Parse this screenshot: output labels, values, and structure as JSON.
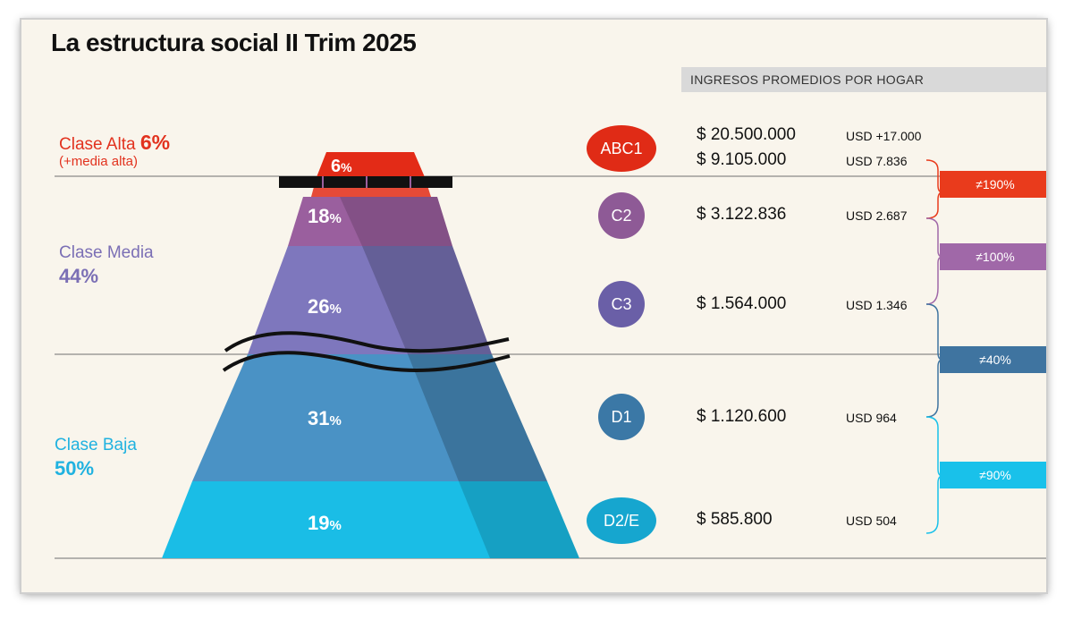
{
  "title": "La estructura social II Trim 2025",
  "income_header": "INGRESOS PROMEDIOS POR HOGAR",
  "classes": {
    "alta": {
      "label": "Clase Alta",
      "pct": "6%",
      "sub": "(+media alta)",
      "color": "#e2321e"
    },
    "media": {
      "label": "Clase Media",
      "pct": "44%",
      "color": "#7b6fb5"
    },
    "baja": {
      "label": "Clase Baja",
      "pct": "50%",
      "color": "#20b2e0"
    }
  },
  "pyramid": [
    {
      "pct": "6",
      "color": "#e32b17"
    },
    {
      "pct": "18",
      "color": "#9a5f9e"
    },
    {
      "pct": "26",
      "color": "#7e77bd"
    },
    {
      "pct": "31",
      "color": "#4a92c5"
    },
    {
      "pct": "19",
      "color": "#1abde6"
    }
  ],
  "pct_symbol": "%",
  "segments": [
    {
      "code": "ABC1",
      "color": "#e02b16",
      "ars": [
        "$ 20.500.000",
        "$ 9.105.000"
      ],
      "usd": [
        "USD +17.000",
        "USD 7.836"
      ]
    },
    {
      "code": "C2",
      "color": "#8e5a96",
      "ars": [
        "$ 3.122.836"
      ],
      "usd": [
        "USD 2.687"
      ]
    },
    {
      "code": "C3",
      "color": "#6a5fa7",
      "ars": [
        "$ 1.564.000"
      ],
      "usd": [
        "USD 1.346"
      ]
    },
    {
      "code": "D1",
      "color": "#3b78a6",
      "ars": [
        "$ 1.120.600"
      ],
      "usd": [
        "USD 964"
      ]
    },
    {
      "code": "D2/E",
      "color": "#16a6cf",
      "ars": [
        "$ 585.800"
      ],
      "usd": [
        "USD 504"
      ]
    }
  ],
  "differences": [
    {
      "label": "≠190%",
      "color": "#e93b1c"
    },
    {
      "label": "≠100%",
      "color": "#a068a8"
    },
    {
      "label": "≠40%",
      "color": "#3f74a0"
    },
    {
      "label": "≠90%",
      "color": "#19c1ea"
    }
  ]
}
